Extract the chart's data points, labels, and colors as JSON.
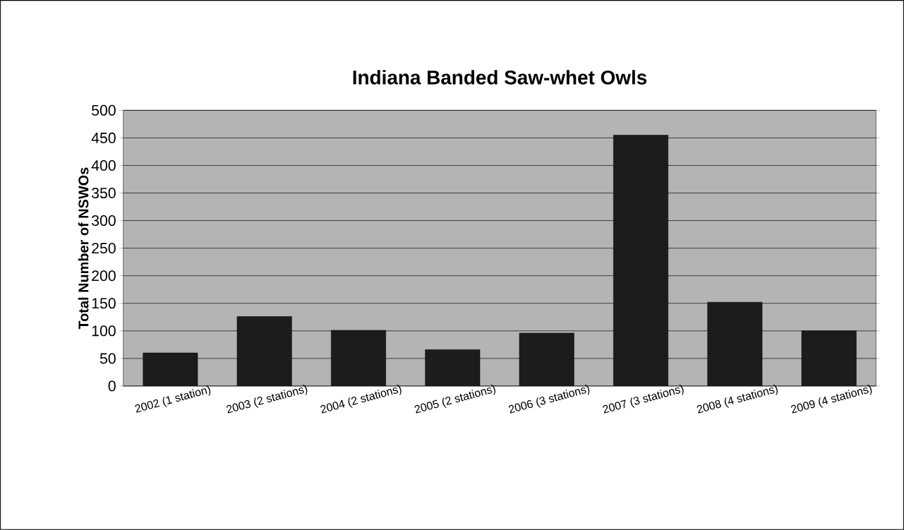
{
  "chart_data": {
    "type": "bar",
    "title": "Indiana Banded Saw-whet Owls",
    "ylabel": "Total Number of NSWOs",
    "categories": [
      "2002 (1 station)",
      "2003 (2 stations)",
      "2004 (2 stations)",
      "2005 (2 stations)",
      "2006 (3 stations)",
      "2007 (3 stations)",
      "2008 (4 stations)",
      "2009 (4 stations)"
    ],
    "values": [
      60,
      126,
      101,
      66,
      96,
      455,
      152,
      100
    ],
    "color": "#1c1c1c",
    "ylim": [
      0,
      500
    ],
    "yticks": [
      0,
      50,
      100,
      150,
      200,
      250,
      300,
      350,
      400,
      450,
      500
    ],
    "grid": "y"
  }
}
